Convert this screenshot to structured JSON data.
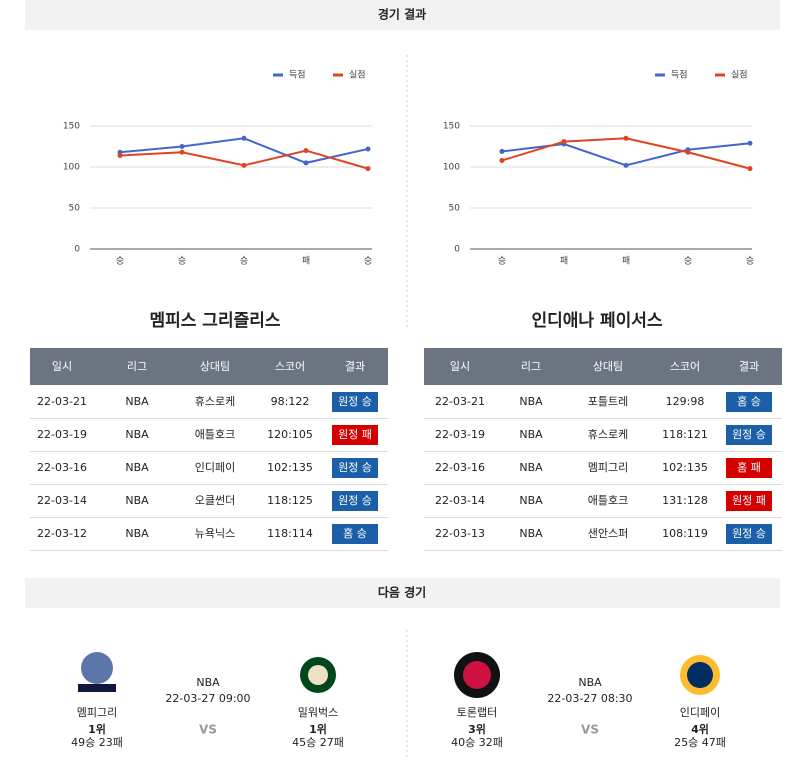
{
  "header": {
    "title": "경기 결과"
  },
  "chart_data": [
    {
      "type": "line",
      "categories": [
        "승",
        "승",
        "승",
        "패",
        "승"
      ],
      "ylim": [
        0,
        150
      ],
      "yticks": [
        0,
        50,
        100,
        150
      ],
      "grid": true,
      "series": [
        {
          "name": "득점",
          "color": "#4466cc",
          "values": [
            118,
            125,
            135,
            105,
            122
          ]
        },
        {
          "name": "실점",
          "color": "#dd4422",
          "values": [
            114,
            118,
            102,
            120,
            98
          ]
        }
      ]
    },
    {
      "type": "line",
      "categories": [
        "승",
        "패",
        "패",
        "승",
        "승"
      ],
      "ylim": [
        0,
        150
      ],
      "yticks": [
        0,
        50,
        100,
        150
      ],
      "grid": true,
      "series": [
        {
          "name": "득점",
          "color": "#4466cc",
          "values": [
            119,
            128,
            102,
            121,
            129
          ]
        },
        {
          "name": "실점",
          "color": "#dd4422",
          "values": [
            108,
            131,
            135,
            118,
            98
          ]
        }
      ]
    }
  ],
  "teams": [
    {
      "name": "멤피스 그리즐리스",
      "columns": [
        "일시",
        "리그",
        "상대팀",
        "스코어",
        "결과"
      ],
      "rows": [
        [
          "22-03-21",
          "NBA",
          "휴스로케",
          "98:122",
          "원정 승"
        ],
        [
          "22-03-19",
          "NBA",
          "애틀호크",
          "120:105",
          "원정 패"
        ],
        [
          "22-03-16",
          "NBA",
          "인디페이",
          "102:135",
          "원정 승"
        ],
        [
          "22-03-14",
          "NBA",
          "오클썬더",
          "118:125",
          "원정 승"
        ],
        [
          "22-03-12",
          "NBA",
          "뉴욕닉스",
          "118:114",
          "홈 승"
        ]
      ],
      "result_colors": [
        "#1a5fa8",
        "#d40000",
        "#1a5fa8",
        "#1a5fa8",
        "#1a5fa8"
      ]
    },
    {
      "name": "인디애나 페이서스",
      "columns": [
        "일시",
        "리그",
        "상대팀",
        "스코어",
        "결과"
      ],
      "rows": [
        [
          "22-03-21",
          "NBA",
          "포틀트레",
          "129:98",
          "홈 승"
        ],
        [
          "22-03-19",
          "NBA",
          "휴스로케",
          "118:121",
          "원정 승"
        ],
        [
          "22-03-16",
          "NBA",
          "멤피그리",
          "102:135",
          "홈 패"
        ],
        [
          "22-03-14",
          "NBA",
          "애틀호크",
          "131:128",
          "원정 패"
        ],
        [
          "22-03-13",
          "NBA",
          "샌안스퍼",
          "108:119",
          "원정 승"
        ]
      ],
      "result_colors": [
        "#1a5fa8",
        "#1a5fa8",
        "#d40000",
        "#d40000",
        "#1a5fa8"
      ]
    }
  ],
  "next": {
    "title": "다음 경기",
    "games": [
      {
        "league": "NBA",
        "time": "22-03-27 09:00",
        "vs": "VS",
        "left": {
          "name": "멤피그리",
          "rank": "1위",
          "record": "49승 23패"
        },
        "right": {
          "name": "밀워벅스",
          "rank": "1위",
          "record": "45승 27패"
        }
      },
      {
        "league": "NBA",
        "time": "22-03-27 08:30",
        "vs": "VS",
        "left": {
          "name": "토론랩터",
          "rank": "3위",
          "record": "40승 32패"
        },
        "right": {
          "name": "인디페이",
          "rank": "4위",
          "record": "25승 47패"
        }
      }
    ]
  }
}
